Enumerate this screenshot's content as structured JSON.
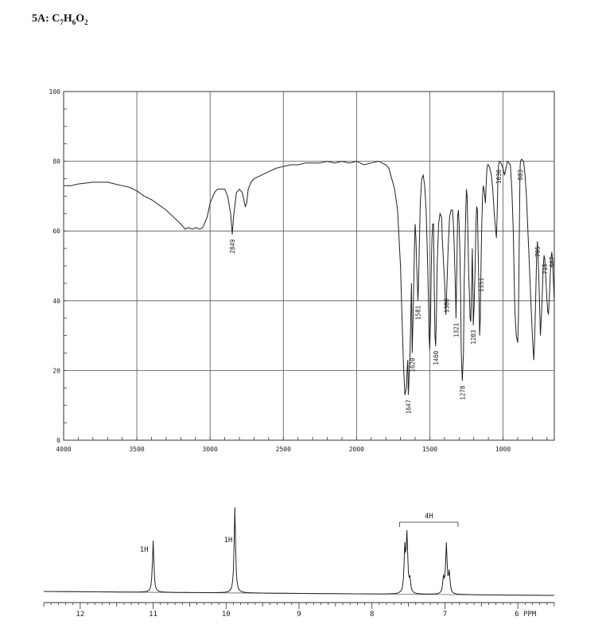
{
  "header": {
    "prefix": "5A: C",
    "s1": "7",
    "h": "H",
    "s2": "6",
    "o": "O",
    "s3": "2"
  },
  "chart_data": [
    {
      "type": "line",
      "xlim": [
        4000,
        650
      ],
      "ylim": [
        0,
        100
      ],
      "x_ticks": [
        "4000",
        "3500",
        "3000",
        "2500",
        "2000",
        "1500",
        "1000"
      ],
      "y_ticks": [
        "0",
        "20",
        "40",
        "60",
        "80",
        "100"
      ],
      "grid": true,
      "series": [
        {
          "x": [
            4000,
            3950,
            3900,
            3800,
            3700,
            3650,
            3600,
            3550,
            3500,
            3450,
            3400,
            3350,
            3300,
            3250,
            3200,
            3170,
            3150,
            3120,
            3100,
            3070,
            3050,
            3020,
            3000,
            2970,
            2950,
            2900,
            2880,
            2860,
            2849,
            2840,
            2820,
            2800,
            2780,
            2760,
            2750,
            2740,
            2720,
            2700,
            2650,
            2600,
            2550,
            2500,
            2450,
            2400,
            2350,
            2300,
            2250,
            2200,
            2150,
            2100,
            2050,
            2000,
            1950,
            1900,
            1850,
            1800,
            1780,
            1760,
            1740,
            1720,
            1700,
            1690,
            1680,
            1670,
            1660,
            1655,
            1650,
            1647,
            1644,
            1640,
            1635,
            1630,
            1625,
            1620,
            1615,
            1610,
            1605,
            1600,
            1595,
            1590,
            1585,
            1581,
            1577,
            1572,
            1565,
            1555,
            1545,
            1535,
            1525,
            1518,
            1510,
            1505,
            1500,
            1495,
            1490,
            1485,
            1480,
            1475,
            1470,
            1465,
            1460,
            1455,
            1450,
            1440,
            1430,
            1420,
            1415,
            1410,
            1405,
            1400,
            1396,
            1390,
            1385,
            1375,
            1365,
            1355,
            1345,
            1340,
            1335,
            1330,
            1325,
            1321,
            1315,
            1310,
            1305,
            1300,
            1295,
            1290,
            1285,
            1278,
            1270,
            1265,
            1255,
            1250,
            1245,
            1240,
            1235,
            1230,
            1225,
            1220,
            1215,
            1210,
            1205,
            1203,
            1198,
            1190,
            1185,
            1180,
            1175,
            1170,
            1165,
            1160,
            1155,
            1151,
            1146,
            1140,
            1135,
            1130,
            1125,
            1120,
            1115,
            1110,
            1105,
            1100,
            1090,
            1080,
            1070,
            1060,
            1050,
            1045,
            1040,
            1035,
            1030,
            1025,
            1020,
            1010,
            1000,
            990,
            980,
            970,
            960,
            950,
            940,
            930,
            920,
            910,
            900,
            895,
            890,
            885,
            883,
            880,
            875,
            870,
            860,
            850,
            840,
            830,
            820,
            810,
            800,
            790,
            785,
            780,
            775,
            770,
            765,
            760,
            755,
            750,
            745,
            740,
            735,
            730,
            725,
            720,
            715,
            710,
            705,
            700,
            695,
            690,
            685,
            680,
            675,
            670,
            667,
            663,
            658,
            653,
            650
          ],
          "y": [
            73,
            73,
            73.5,
            74,
            74,
            73.5,
            73,
            72.5,
            71.5,
            70,
            69,
            67.5,
            66,
            64,
            62,
            60.5,
            61,
            60.5,
            61,
            60.5,
            61,
            64,
            68,
            71,
            72,
            72,
            70,
            65,
            59,
            64,
            71,
            72,
            71,
            67,
            68,
            72,
            74,
            75,
            76,
            77,
            78,
            78.5,
            79,
            79,
            79.5,
            79.5,
            79.5,
            80,
            79.5,
            80,
            79.5,
            80,
            79,
            79.5,
            80,
            79,
            78,
            75,
            72,
            66,
            50,
            35,
            22,
            13,
            15,
            20,
            23,
            13,
            15,
            20,
            25,
            35,
            45,
            25,
            34,
            44,
            55,
            62,
            58,
            50,
            45,
            40,
            45,
            55,
            68,
            75,
            76,
            73,
            66,
            56,
            42,
            30,
            26,
            35,
            50,
            58,
            62,
            62,
            45,
            30,
            27,
            35,
            50,
            62,
            65,
            64,
            58,
            54,
            50,
            46,
            42,
            36,
            42,
            55,
            64,
            66,
            66,
            63,
            58,
            50,
            43,
            35,
            50,
            64,
            66,
            62,
            55,
            43,
            25,
            17,
            25,
            45,
            65,
            72,
            70,
            60,
            48,
            42,
            35,
            34,
            43,
            55,
            42,
            33,
            38,
            50,
            62,
            67,
            66,
            55,
            44,
            30,
            35,
            48,
            60,
            70,
            73,
            72,
            70,
            68,
            74,
            78,
            79,
            79,
            78,
            76,
            72,
            65,
            60,
            58,
            65,
            75,
            79,
            80,
            80,
            79,
            78,
            76,
            78,
            80,
            79.5,
            79,
            72,
            60,
            38,
            30,
            28,
            35,
            55,
            74,
            79,
            80,
            80.5,
            80.5,
            80,
            76,
            70,
            60,
            50,
            40,
            30,
            23,
            28,
            36,
            45,
            54,
            57,
            52,
            45,
            38,
            30,
            34,
            38,
            45,
            50,
            53,
            52,
            48,
            44,
            40,
            37,
            36,
            40,
            45,
            50,
            53,
            54,
            52,
            48,
            43,
            40
          ]
        }
      ],
      "peak_labels": [
        "2849",
        "1647",
        "1620",
        "1581",
        "1460",
        "1386",
        "1321",
        "1278",
        "1203",
        "1151",
        "1030",
        "883",
        "765",
        "715",
        "667"
      ]
    },
    {
      "type": "line",
      "xlim": [
        12.5,
        5.5
      ],
      "x_ticks": [
        "12",
        "11",
        "10",
        "9",
        "8",
        "7",
        "6 PPM"
      ],
      "integration_labels": [
        "1H",
        "1H",
        "4H"
      ],
      "peaks": [
        {
          "ppm": 11.0,
          "height": 1.0
        },
        {
          "ppm": 9.88,
          "height": 1.65
        },
        {
          "ppm": 7.55,
          "height": 0.85
        },
        {
          "ppm": 7.52,
          "height": 1.1
        },
        {
          "ppm": 7.48,
          "height": 0.25
        },
        {
          "ppm": 7.02,
          "height": 0.3
        },
        {
          "ppm": 6.98,
          "height": 0.95
        },
        {
          "ppm": 6.94,
          "height": 0.4
        }
      ]
    }
  ]
}
